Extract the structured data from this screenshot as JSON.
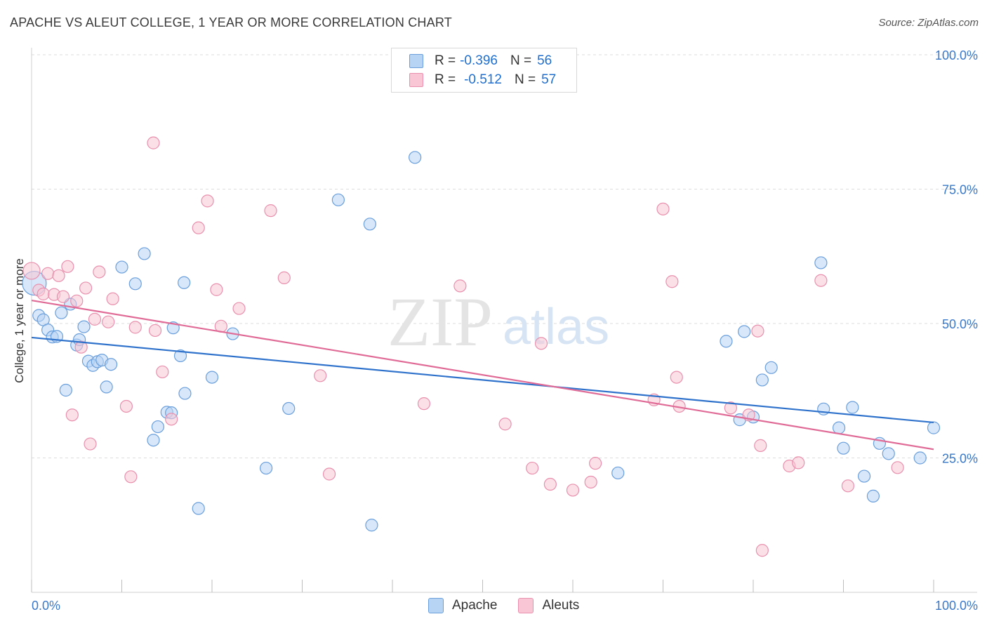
{
  "header": {
    "title": "APACHE VS ALEUT COLLEGE, 1 YEAR OR MORE CORRELATION CHART",
    "source": "Source: ZipAtlas.com"
  },
  "legend": {
    "rows": [
      {
        "r_label": "R =",
        "r_value": "-0.396",
        "n_label": "N =",
        "n_value": "56"
      },
      {
        "r_label": "R =",
        "r_value": "-0.512",
        "n_label": "N =",
        "n_value": "57"
      }
    ]
  },
  "watermark": {
    "zip": "ZIP",
    "atlas": "atlas"
  },
  "colors": {
    "apache_fill": "#b8d4f4",
    "apache_stroke": "#6a9fdc",
    "apache_line": "#2f72cc",
    "aleuts_fill": "#f9c6d6",
    "aleuts_stroke": "#e890ad",
    "aleuts_line": "#e06b96",
    "tick_text": "#3a78c9",
    "grid": "#dcdcdc"
  },
  "chart_data": {
    "type": "scatter",
    "title": "APACHE VS ALEUT COLLEGE, 1 YEAR OR MORE CORRELATION CHART",
    "xlabel": "",
    "ylabel": "College, 1 year or more",
    "xlim": [
      0,
      100
    ],
    "ylim": [
      0,
      100
    ],
    "x_tick_labels": [
      {
        "value": 0,
        "label": "0.0%"
      },
      {
        "value": 100,
        "label": "100.0%"
      }
    ],
    "y_tick_labels": [
      {
        "value": 25,
        "label": "25.0%"
      },
      {
        "value": 50,
        "label": "50.0%"
      },
      {
        "value": 75,
        "label": "75.0%"
      },
      {
        "value": 100,
        "label": "100.0%"
      }
    ],
    "grid": true,
    "legend_position": "bottom-center",
    "series": [
      {
        "name": "Apache",
        "r": -0.396,
        "n": 56,
        "trend": [
          [
            0,
            47.4
          ],
          [
            100,
            31.6
          ]
        ],
        "points": [
          [
            0.3,
            57.5
          ],
          [
            0.8,
            51.5
          ],
          [
            1.3,
            50.7
          ],
          [
            1.8,
            48.8
          ],
          [
            2.3,
            47.5
          ],
          [
            2.8,
            47.6
          ],
          [
            3.3,
            52.0
          ],
          [
            3.8,
            37.6
          ],
          [
            4.3,
            53.6
          ],
          [
            5.0,
            46.0
          ],
          [
            5.3,
            47.0
          ],
          [
            5.8,
            49.4
          ],
          [
            6.3,
            43.0
          ],
          [
            6.8,
            42.2
          ],
          [
            7.3,
            42.9
          ],
          [
            7.8,
            43.2
          ],
          [
            8.3,
            38.2
          ],
          [
            8.8,
            42.4
          ],
          [
            10.0,
            60.5
          ],
          [
            11.5,
            57.4
          ],
          [
            12.5,
            63.0
          ],
          [
            13.5,
            28.3
          ],
          [
            14.0,
            30.8
          ],
          [
            15.0,
            33.5
          ],
          [
            15.5,
            33.4
          ],
          [
            15.7,
            49.2
          ],
          [
            16.5,
            44.0
          ],
          [
            16.9,
            57.6
          ],
          [
            17.0,
            37.0
          ],
          [
            18.5,
            15.6
          ],
          [
            20.0,
            40.0
          ],
          [
            22.3,
            48.1
          ],
          [
            26.0,
            23.1
          ],
          [
            28.5,
            34.2
          ],
          [
            34.0,
            73.0
          ],
          [
            37.5,
            68.5
          ],
          [
            37.7,
            12.5
          ],
          [
            42.5,
            80.9
          ],
          [
            65.0,
            22.2
          ],
          [
            77.0,
            46.7
          ],
          [
            78.5,
            32.1
          ],
          [
            79.0,
            48.5
          ],
          [
            80.0,
            32.6
          ],
          [
            81.0,
            39.5
          ],
          [
            82.0,
            41.8
          ],
          [
            87.5,
            61.3
          ],
          [
            87.8,
            34.1
          ],
          [
            89.5,
            30.6
          ],
          [
            90.0,
            26.8
          ],
          [
            91.0,
            34.4
          ],
          [
            92.3,
            21.6
          ],
          [
            93.3,
            17.9
          ],
          [
            94.0,
            27.7
          ],
          [
            95.0,
            25.8
          ],
          [
            98.5,
            25.0
          ],
          [
            100.0,
            30.6
          ]
        ]
      },
      {
        "name": "Aleuts",
        "r": -0.512,
        "n": 57,
        "trend": [
          [
            0,
            54.3
          ],
          [
            100,
            26.6
          ]
        ],
        "points": [
          [
            0.0,
            59.8
          ],
          [
            0.8,
            56.2
          ],
          [
            1.3,
            55.5
          ],
          [
            1.8,
            59.3
          ],
          [
            2.5,
            55.4
          ],
          [
            3.0,
            58.9
          ],
          [
            3.5,
            55.0
          ],
          [
            4.0,
            60.6
          ],
          [
            4.5,
            33.0
          ],
          [
            5.0,
            54.2
          ],
          [
            5.5,
            45.6
          ],
          [
            6.0,
            56.6
          ],
          [
            6.5,
            27.6
          ],
          [
            7.0,
            50.8
          ],
          [
            7.5,
            59.6
          ],
          [
            8.5,
            50.3
          ],
          [
            9.0,
            54.6
          ],
          [
            10.5,
            34.6
          ],
          [
            11.0,
            21.5
          ],
          [
            11.5,
            49.3
          ],
          [
            13.5,
            83.6
          ],
          [
            13.7,
            48.7
          ],
          [
            14.5,
            41.0
          ],
          [
            15.5,
            32.2
          ],
          [
            18.5,
            67.8
          ],
          [
            19.5,
            72.8
          ],
          [
            20.5,
            56.3
          ],
          [
            21.0,
            49.5
          ],
          [
            23.0,
            52.8
          ],
          [
            26.5,
            71.0
          ],
          [
            28.0,
            58.5
          ],
          [
            32.0,
            40.3
          ],
          [
            33.0,
            22.0
          ],
          [
            43.5,
            35.1
          ],
          [
            47.5,
            57.0
          ],
          [
            52.5,
            31.3
          ],
          [
            55.5,
            23.1
          ],
          [
            56.5,
            46.3
          ],
          [
            57.5,
            20.1
          ],
          [
            60.0,
            19.0
          ],
          [
            62.0,
            20.5
          ],
          [
            62.5,
            24.0
          ],
          [
            69.0,
            35.8
          ],
          [
            70.0,
            71.3
          ],
          [
            71.0,
            57.8
          ],
          [
            71.5,
            40.0
          ],
          [
            71.8,
            34.6
          ],
          [
            77.5,
            34.3
          ],
          [
            79.5,
            33.0
          ],
          [
            80.5,
            48.6
          ],
          [
            80.8,
            27.3
          ],
          [
            81.0,
            7.8
          ],
          [
            84.0,
            23.5
          ],
          [
            85.0,
            24.1
          ],
          [
            87.5,
            58.0
          ],
          [
            90.5,
            19.8
          ],
          [
            96.0,
            23.2
          ]
        ]
      }
    ]
  },
  "bottom_legend": {
    "items": [
      {
        "label": "Apache"
      },
      {
        "label": "Aleuts"
      }
    ]
  }
}
